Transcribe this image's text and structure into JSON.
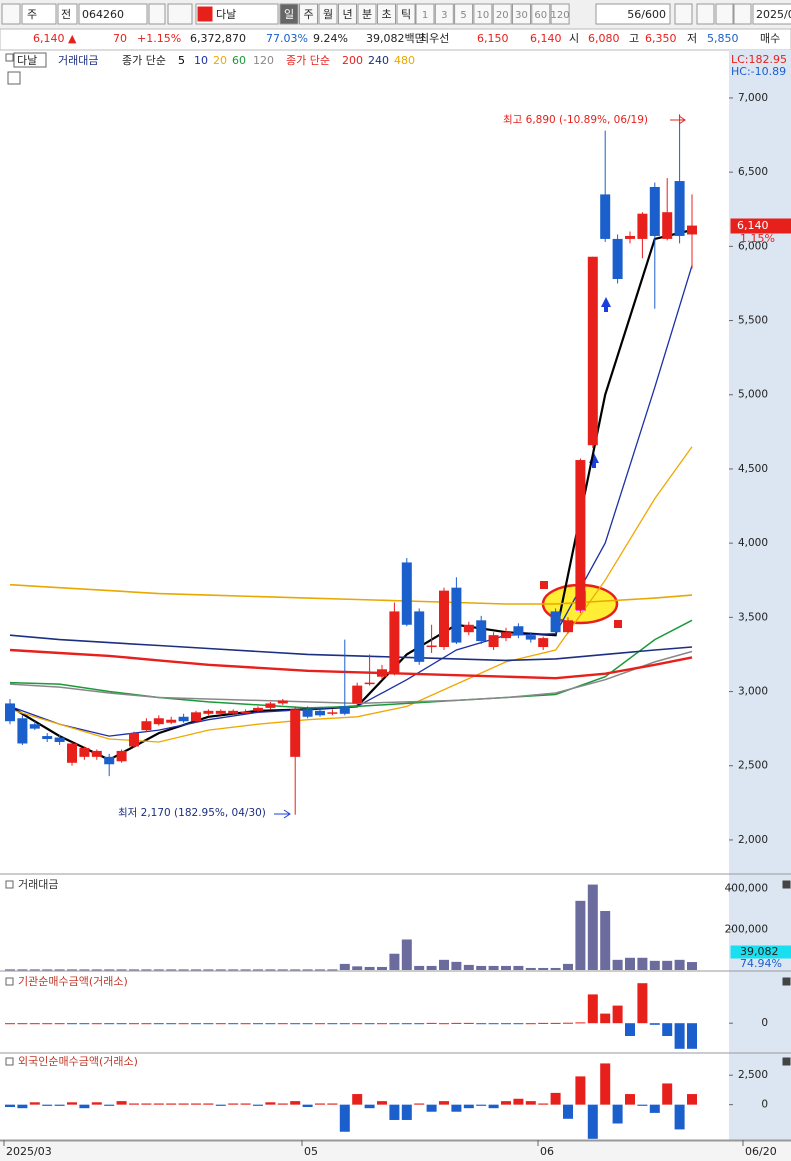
{
  "toolbar": {
    "market": "주",
    "scope": "전",
    "code": "064260",
    "name": "다날",
    "periods": [
      "일",
      "주",
      "월",
      "년",
      "분",
      "초",
      "틱"
    ],
    "intervals": [
      "1",
      "3",
      "5",
      "10",
      "20",
      "30",
      "60",
      "120"
    ],
    "count": "56/600",
    "date": "2025/0"
  },
  "info": [
    "6,140",
    "▲",
    "70",
    "+1.15%",
    "6,372,870",
    "77.03%",
    "9.24%",
    "39,082백만",
    "최우선",
    "6,150",
    "6,140",
    "시",
    "6,080",
    "고",
    "6,350",
    "저",
    "5,850",
    "매수"
  ],
  "chart_data": {
    "type": "candlestick",
    "name": "다날",
    "legend_volume": "거래대금",
    "ma_label_1": "종가 단순",
    "ma_label_2": "종가 단순",
    "ohlc": [
      [
        2920,
        2950,
        2780,
        2800
      ],
      [
        2820,
        2840,
        2640,
        2650
      ],
      [
        2780,
        2800,
        2740,
        2750
      ],
      [
        2700,
        2720,
        2660,
        2680
      ],
      [
        2690,
        2710,
        2640,
        2660
      ],
      [
        2520,
        2660,
        2500,
        2650
      ],
      [
        2560,
        2630,
        2540,
        2620
      ],
      [
        2560,
        2610,
        2540,
        2600
      ],
      [
        2560,
        2580,
        2430,
        2510
      ],
      [
        2530,
        2610,
        2520,
        2600
      ],
      [
        2630,
        2730,
        2620,
        2720
      ],
      [
        2740,
        2820,
        2730,
        2800
      ],
      [
        2780,
        2840,
        2770,
        2820
      ],
      [
        2790,
        2830,
        2780,
        2810
      ],
      [
        2830,
        2850,
        2790,
        2800
      ],
      [
        2800,
        2870,
        2790,
        2860
      ],
      [
        2850,
        2880,
        2840,
        2870
      ],
      [
        2850,
        2880,
        2840,
        2870
      ],
      [
        2850,
        2880,
        2840,
        2870
      ],
      [
        2860,
        2880,
        2850,
        2865
      ],
      [
        2870,
        2900,
        2860,
        2890
      ],
      [
        2890,
        2930,
        2880,
        2920
      ],
      [
        2920,
        2950,
        2910,
        2940
      ],
      [
        2560,
        2900,
        2170,
        2880
      ],
      [
        2880,
        2900,
        2820,
        2830
      ],
      [
        2870,
        2880,
        2830,
        2840
      ],
      [
        2850,
        2880,
        2840,
        2860
      ],
      [
        2900,
        3350,
        2840,
        2850
      ],
      [
        2920,
        3060,
        2900,
        3040
      ],
      [
        3050,
        3250,
        3040,
        3060
      ],
      [
        3100,
        3180,
        3080,
        3150
      ],
      [
        3120,
        3600,
        3110,
        3540
      ],
      [
        3870,
        3900,
        3440,
        3450
      ],
      [
        3540,
        3560,
        3180,
        3200
      ],
      [
        3300,
        3450,
        3260,
        3310
      ],
      [
        3300,
        3700,
        3280,
        3680
      ],
      [
        3700,
        3770,
        3320,
        3330
      ],
      [
        3400,
        3470,
        3380,
        3450
      ],
      [
        3480,
        3510,
        3320,
        3340
      ],
      [
        3300,
        3400,
        3280,
        3380
      ],
      [
        3360,
        3430,
        3340,
        3400
      ],
      [
        3440,
        3460,
        3360,
        3380
      ],
      [
        3380,
        3400,
        3330,
        3350
      ],
      [
        3300,
        3370,
        3280,
        3360
      ],
      [
        3540,
        3560,
        3390,
        3400
      ],
      [
        3400,
        3500,
        3390,
        3480
      ],
      [
        3550,
        4570,
        3530,
        4560
      ],
      [
        4660,
        5930,
        4640,
        5930
      ],
      [
        6350,
        6780,
        6030,
        6050
      ],
      [
        6050,
        6080,
        5750,
        5780
      ],
      [
        6050,
        6100,
        6020,
        6070
      ],
      [
        6050,
        6230,
        5920,
        6220
      ],
      [
        6400,
        6430,
        5580,
        6070
      ],
      [
        6050,
        6460,
        6040,
        6230
      ],
      [
        6440,
        6890,
        6020,
        6070
      ],
      [
        6080,
        6350,
        5850,
        6140
      ]
    ],
    "up_color": "#e8201c",
    "down_color": "#1b5fcc",
    "series": [
      {
        "name": "5",
        "color": "#000000",
        "width": 2.2,
        "x": [
          0,
          4,
          8,
          12,
          16,
          20,
          24,
          28,
          32,
          36,
          40,
          44,
          48,
          52,
          55
        ],
        "values": [
          2900,
          2700,
          2540,
          2720,
          2830,
          2870,
          2880,
          2900,
          3250,
          3450,
          3400,
          3380,
          5000,
          6050,
          6110
        ]
      },
      {
        "name": "10",
        "color": "#1c2fa8",
        "width": 1.3,
        "x": [
          0,
          4,
          8,
          12,
          16,
          20,
          24,
          28,
          32,
          36,
          40,
          44,
          48,
          52,
          55
        ],
        "values": [
          2900,
          2780,
          2700,
          2740,
          2810,
          2860,
          2880,
          2900,
          3080,
          3280,
          3380,
          3390,
          4000,
          5050,
          5870
        ]
      },
      {
        "name": "20",
        "color": "#f0a800",
        "width": 1.3,
        "x": [
          0,
          4,
          8,
          12,
          16,
          20,
          24,
          28,
          32,
          36,
          40,
          44,
          48,
          52,
          55
        ],
        "values": [
          2880,
          2780,
          2680,
          2660,
          2740,
          2780,
          2810,
          2830,
          2900,
          3050,
          3200,
          3280,
          3750,
          4300,
          4650
        ]
      },
      {
        "name": "60",
        "color": "#1a9a3a",
        "width": 1.5,
        "x": [
          0,
          4,
          8,
          12,
          16,
          20,
          24,
          28,
          32,
          36,
          40,
          44,
          48,
          52,
          55
        ],
        "values": [
          3060,
          3050,
          3000,
          2960,
          2930,
          2910,
          2890,
          2900,
          2920,
          2940,
          2960,
          2980,
          3100,
          3350,
          3480
        ]
      },
      {
        "name": "120",
        "color": "#888888",
        "width": 1.5,
        "x": [
          0,
          4,
          8,
          12,
          16,
          20,
          24,
          28,
          32,
          36,
          40,
          44,
          48,
          52,
          55
        ],
        "values": [
          3050,
          3030,
          2990,
          2960,
          2950,
          2940,
          2930,
          2920,
          2930,
          2940,
          2960,
          2990,
          3080,
          3200,
          3270
        ]
      },
      {
        "name": "200",
        "color": "#e8201c",
        "width": 2.4,
        "x": [
          0,
          4,
          8,
          12,
          16,
          20,
          24,
          28,
          32,
          36,
          40,
          44,
          48,
          52,
          55
        ],
        "values": [
          3280,
          3260,
          3240,
          3210,
          3180,
          3160,
          3140,
          3130,
          3120,
          3110,
          3100,
          3090,
          3120,
          3180,
          3230
        ]
      },
      {
        "name": "240",
        "color": "#1c2f80",
        "width": 1.6,
        "x": [
          0,
          4,
          8,
          12,
          16,
          20,
          24,
          28,
          32,
          36,
          40,
          44,
          48,
          52,
          55
        ],
        "values": [
          3380,
          3350,
          3330,
          3310,
          3290,
          3270,
          3250,
          3240,
          3230,
          3220,
          3210,
          3220,
          3250,
          3280,
          3300
        ]
      },
      {
        "name": "480",
        "color": "#e8a800",
        "width": 1.6,
        "x": [
          0,
          4,
          8,
          12,
          16,
          20,
          24,
          28,
          32,
          36,
          40,
          44,
          48,
          52,
          55
        ],
        "values": [
          3720,
          3700,
          3680,
          3660,
          3650,
          3640,
          3630,
          3620,
          3610,
          3600,
          3590,
          3590,
          3610,
          3630,
          3650
        ]
      }
    ],
    "ylim": [
      1784,
      7222
    ],
    "yticks": [
      {
        "value": 2000,
        "label": "2,000"
      },
      {
        "value": 2500,
        "label": "2,500"
      },
      {
        "value": 3000,
        "label": "3,000"
      },
      {
        "value": 3500,
        "label": "3,500"
      },
      {
        "value": 4000,
        "label": "4,000"
      },
      {
        "value": 4500,
        "label": "4,500"
      },
      {
        "value": 5000,
        "label": "5,000"
      },
      {
        "value": 5500,
        "label": "5,500"
      },
      {
        "value": 6000,
        "label": "6,000"
      },
      {
        "value": 6500,
        "label": "6,500"
      },
      {
        "value": 7000,
        "label": "7,000"
      }
    ],
    "high_note": "최고 6,890 (-10.89%, 06/19)",
    "low_note": "최저 2,170 (182.95%, 04/30)",
    "lc": "LC:182.95",
    "hc": "HC:-10.89",
    "last_price": "6,140",
    "last_change": "1.15%",
    "x_labels": [
      "2025/03",
      "05",
      "06",
      "06/20"
    ],
    "panes": [
      {
        "title": "거래대금",
        "type": "bar",
        "color": "#6b6b9e",
        "ylim": [
          0,
          467000
        ],
        "yticks": [
          {
            "value": 200000,
            "label": "200,000"
          },
          {
            "value": 400000,
            "label": "400,000"
          }
        ],
        "last_label": "39,082",
        "last_ratio": "74.94%",
        "values": [
          3000,
          3000,
          3000,
          3000,
          3000,
          3000,
          3000,
          3000,
          3000,
          3000,
          3000,
          3000,
          3000,
          3000,
          3000,
          3000,
          3000,
          3000,
          3000,
          3000,
          3000,
          3000,
          3000,
          3000,
          3000,
          3000,
          3000,
          30000,
          18000,
          15000,
          15000,
          80000,
          150000,
          20000,
          20000,
          50000,
          40000,
          25000,
          20000,
          20000,
          20000,
          20000,
          10000,
          10000,
          10000,
          30000,
          340000,
          420000,
          290000,
          50000,
          60000,
          60000,
          45000,
          45000,
          50000,
          39082
        ]
      },
      {
        "title": "기관순매수금액(거래소)",
        "type": "bar",
        "pos_color": "#e8201c",
        "neg_color": "#1b5fcc",
        "ylim": [
          -180,
          320
        ],
        "yticks": [
          0
        ],
        "values": [
          0,
          0,
          0,
          0,
          0,
          -2,
          -2,
          0,
          -2,
          -2,
          0,
          0,
          -2,
          -2,
          0,
          -2,
          -2,
          0,
          -2,
          0,
          -2,
          -2,
          0,
          -2,
          -2,
          0,
          -2,
          -2,
          0,
          -2,
          0,
          -2,
          -2,
          -2,
          2,
          0,
          2,
          2,
          -3,
          -3,
          -2,
          -2,
          0,
          2,
          2,
          3,
          5,
          180,
          60,
          110,
          -80,
          250,
          -10,
          -80,
          -160,
          -160
        ]
      },
      {
        "title": "외국인순매수금액(거래소)",
        "type": "bar",
        "pos_color": "#e8201c",
        "neg_color": "#1b5fcc",
        "ylim": [
          -3000,
          4300
        ],
        "yticks": [
          0,
          {
            "value": 2500,
            "label": "2,500"
          }
        ],
        "values": [
          -200,
          -300,
          200,
          -100,
          -100,
          200,
          -300,
          200,
          -100,
          300,
          100,
          100,
          100,
          100,
          100,
          100,
          100,
          -100,
          100,
          100,
          -100,
          200,
          100,
          300,
          -200,
          100,
          100,
          -2300,
          900,
          -300,
          300,
          -1300,
          -1300,
          100,
          -600,
          300,
          -600,
          -300,
          -100,
          -300,
          300,
          500,
          300,
          100,
          1000,
          -1200,
          2400,
          -2900,
          3500,
          -1600,
          900,
          -100,
          -700,
          1800,
          -2100,
          900
        ]
      }
    ]
  }
}
